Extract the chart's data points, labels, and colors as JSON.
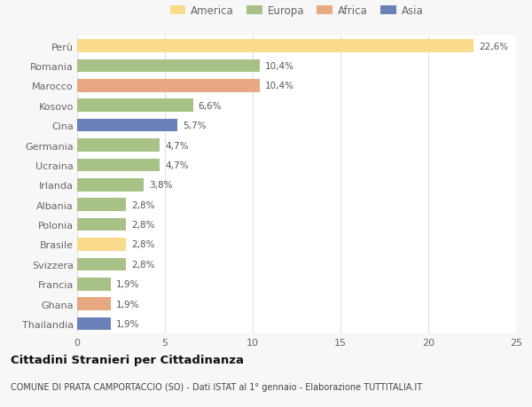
{
  "categories": [
    "Perù",
    "Romania",
    "Marocco",
    "Kosovo",
    "Cina",
    "Germania",
    "Ucraina",
    "Irlanda",
    "Albania",
    "Polonia",
    "Brasile",
    "Svizzera",
    "Francia",
    "Ghana",
    "Thailandia"
  ],
  "values": [
    22.6,
    10.4,
    10.4,
    6.6,
    5.7,
    4.7,
    4.7,
    3.8,
    2.8,
    2.8,
    2.8,
    2.8,
    1.9,
    1.9,
    1.9
  ],
  "labels": [
    "22,6%",
    "10,4%",
    "10,4%",
    "6,6%",
    "5,7%",
    "4,7%",
    "4,7%",
    "3,8%",
    "2,8%",
    "2,8%",
    "2,8%",
    "2,8%",
    "1,9%",
    "1,9%",
    "1,9%"
  ],
  "colors": [
    "#FADA8B",
    "#A8C187",
    "#E8A882",
    "#A8C187",
    "#6B82B8",
    "#A8C187",
    "#A8C187",
    "#A8C187",
    "#A8C187",
    "#A8C187",
    "#FADA8B",
    "#A8C187",
    "#A8C187",
    "#E8A882",
    "#6B82B8"
  ],
  "legend_labels": [
    "America",
    "Europa",
    "Africa",
    "Asia"
  ],
  "legend_colors": [
    "#FADA8B",
    "#A8C187",
    "#E8A882",
    "#6B82B8"
  ],
  "title": "Cittadini Stranieri per Cittadinanza",
  "subtitle": "COMUNE DI PRATA CAMPORTACCIO (SO) - Dati ISTAT al 1° gennaio - Elaborazione TUTTITALIA.IT",
  "xlim": [
    0,
    25
  ],
  "xticks": [
    0,
    5,
    10,
    15,
    20,
    25
  ],
  "background_color": "#f7f7f7",
  "bar_background": "#ffffff",
  "grid_color": "#e0e0e0",
  "label_color": "#666666",
  "value_color": "#555555",
  "title_color": "#111111",
  "subtitle_color": "#444444"
}
